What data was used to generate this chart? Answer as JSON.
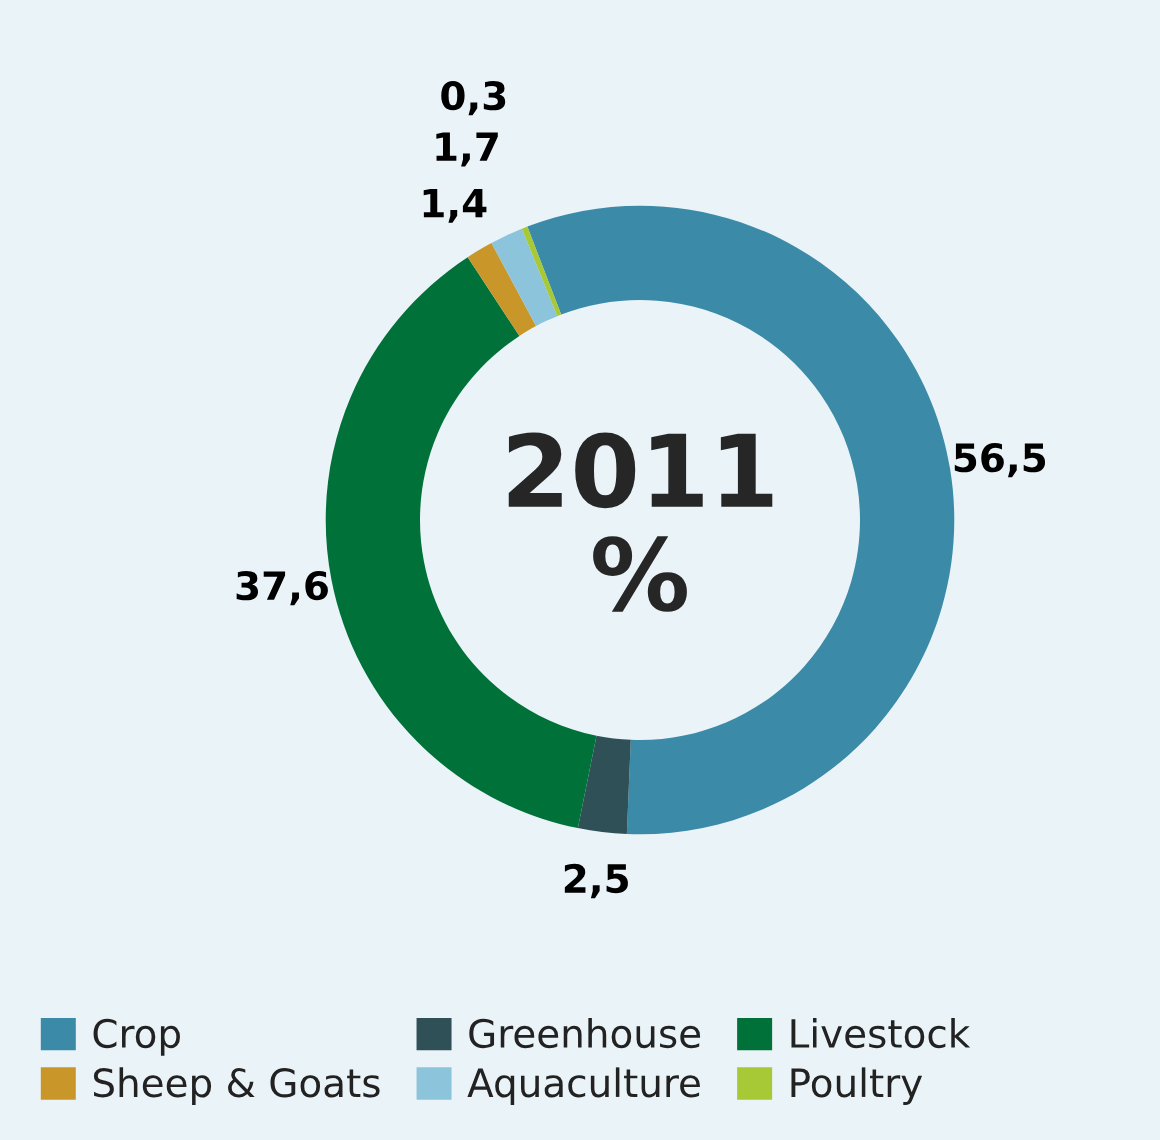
{
  "chart_data": {
    "type": "donut",
    "title": "2011",
    "subtitle": "%",
    "categories": [
      "Crop",
      "Greenhouse",
      "Livestock",
      "Sheep & Goats",
      "Aquaculture",
      "Poultry"
    ],
    "values": [
      56.5,
      2.5,
      37.6,
      1.4,
      1.7,
      0.3
    ],
    "value_labels": [
      "56,5",
      "2,5",
      "37,6",
      "1,4",
      "1,7",
      "0,3"
    ],
    "colors": [
      "#3a8aa8",
      "#2f5057",
      "#007139",
      "#c9962a",
      "#8cc4dc",
      "#a6c935"
    ],
    "legend": "bottom"
  }
}
